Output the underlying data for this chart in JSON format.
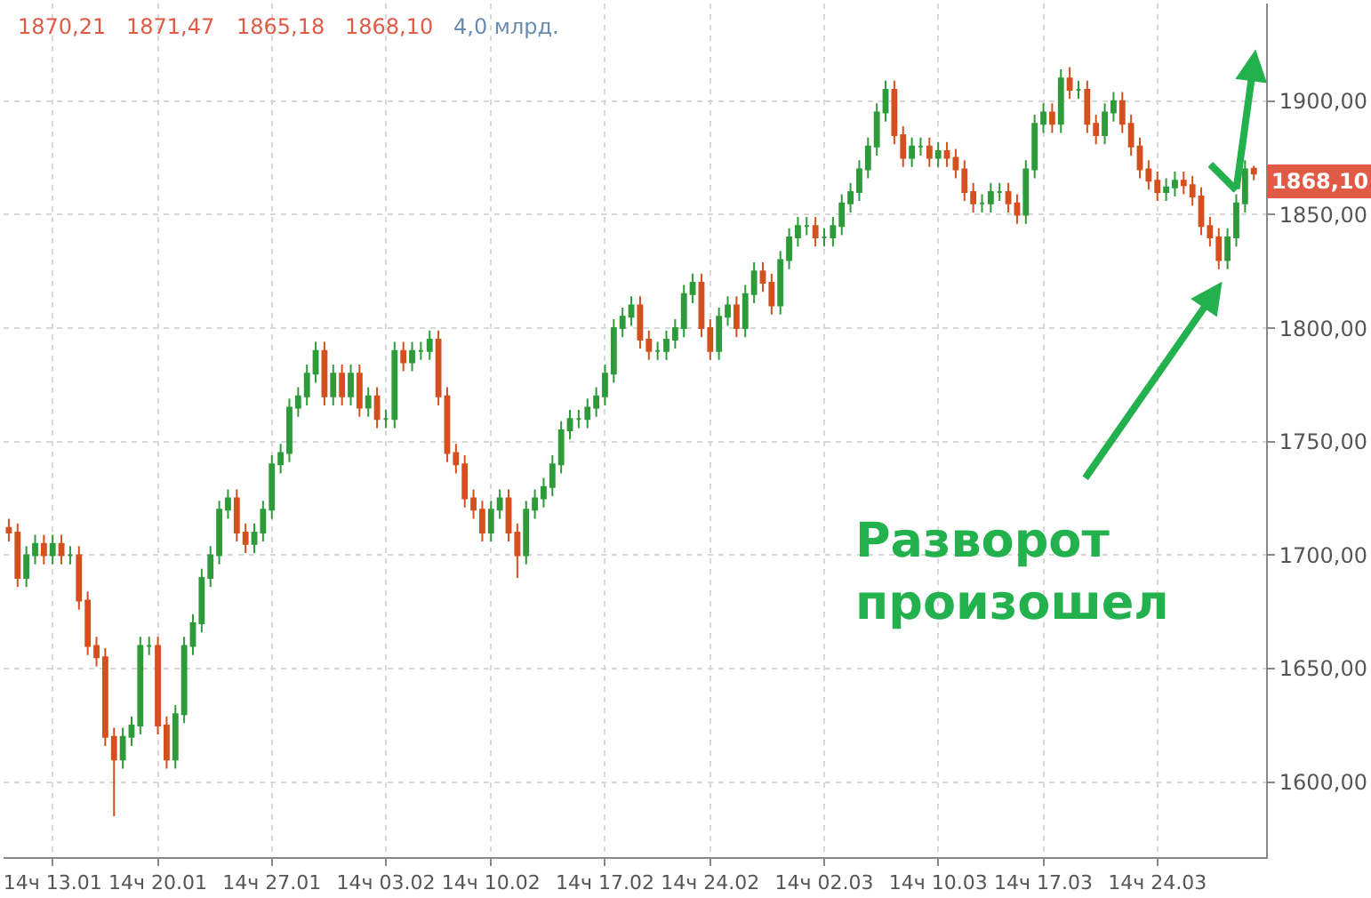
{
  "chart_data": {
    "type": "candlestick",
    "categories": [
      null,
      null,
      null,
      null,
      null,
      "14ч 13.01",
      null,
      null,
      null,
      null,
      null,
      null,
      null,
      null,
      null,
      null,
      null,
      "14ч 20.01",
      null,
      null,
      null,
      null,
      null,
      null,
      null,
      null,
      null,
      null,
      null,
      null,
      "14ч 27.01",
      null,
      null,
      null,
      null,
      null,
      null,
      null,
      null,
      null,
      null,
      null,
      null,
      "14ч 03.02",
      null,
      null,
      null,
      null,
      null,
      null,
      null,
      null,
      null,
      null,
      null,
      "14ч 10.02",
      null,
      null,
      null,
      null,
      null,
      null,
      null,
      null,
      null,
      null,
      null,
      null,
      "14ч 17.02",
      null,
      null,
      null,
      null,
      null,
      null,
      null,
      null,
      null,
      null,
      null,
      "14ч 24.02",
      null,
      null,
      null,
      null,
      null,
      null,
      null,
      null,
      null,
      null,
      null,
      null,
      "14ч 02.03",
      null,
      null,
      null,
      null,
      null,
      null,
      null,
      null,
      null,
      null,
      null,
      null,
      "14ч 10.03",
      null,
      null,
      null,
      null,
      null,
      null,
      null,
      null,
      null,
      null,
      null,
      "14ч 17.03",
      null,
      null,
      null,
      null,
      null,
      null,
      null,
      null,
      null,
      null,
      null,
      null,
      "14ч 24.03",
      null,
      null,
      null,
      null,
      null,
      null,
      null,
      null,
      null,
      null,
      null
    ],
    "ohlc": [
      [
        1712,
        1716,
        1706,
        1710
      ],
      [
        1710,
        1714,
        1686,
        1690
      ],
      [
        1690,
        1704,
        1686,
        1700
      ],
      [
        1700,
        1709,
        1696,
        1705
      ],
      [
        1705,
        1709,
        1696,
        1700
      ],
      [
        1700,
        1709,
        1696,
        1705
      ],
      [
        1705,
        1709,
        1696,
        1700
      ],
      [
        1700,
        1704,
        1696,
        1700
      ],
      [
        1700,
        1704,
        1676,
        1680
      ],
      [
        1680,
        1684,
        1656,
        1660
      ],
      [
        1660,
        1664,
        1651,
        1655
      ],
      [
        1655,
        1659,
        1616,
        1620
      ],
      [
        1620,
        1624,
        1585,
        1610
      ],
      [
        1610,
        1624,
        1606,
        1620
      ],
      [
        1620,
        1629,
        1616,
        1625
      ],
      [
        1625,
        1664,
        1621,
        1660
      ],
      [
        1660,
        1664,
        1656,
        1660
      ],
      [
        1660,
        1664,
        1621,
        1625
      ],
      [
        1625,
        1629,
        1606,
        1610
      ],
      [
        1610,
        1634,
        1606,
        1630
      ],
      [
        1630,
        1664,
        1626,
        1660
      ],
      [
        1660,
        1674,
        1656,
        1670
      ],
      [
        1670,
        1694,
        1666,
        1690
      ],
      [
        1690,
        1704,
        1686,
        1700
      ],
      [
        1700,
        1724,
        1696,
        1720
      ],
      [
        1720,
        1729,
        1716,
        1725
      ],
      [
        1725,
        1729,
        1706,
        1710
      ],
      [
        1710,
        1714,
        1701,
        1705
      ],
      [
        1705,
        1714,
        1701,
        1710
      ],
      [
        1710,
        1724,
        1706,
        1720
      ],
      [
        1720,
        1744,
        1716,
        1740
      ],
      [
        1740,
        1749,
        1736,
        1745
      ],
      [
        1745,
        1769,
        1741,
        1765
      ],
      [
        1765,
        1774,
        1761,
        1770
      ],
      [
        1770,
        1784,
        1766,
        1780
      ],
      [
        1780,
        1794,
        1776,
        1790
      ],
      [
        1790,
        1794,
        1766,
        1770
      ],
      [
        1770,
        1784,
        1766,
        1780
      ],
      [
        1780,
        1784,
        1766,
        1770
      ],
      [
        1770,
        1784,
        1766,
        1780
      ],
      [
        1780,
        1784,
        1761,
        1765
      ],
      [
        1765,
        1774,
        1761,
        1770
      ],
      [
        1770,
        1774,
        1756,
        1760
      ],
      [
        1760,
        1764,
        1756,
        1760
      ],
      [
        1760,
        1794,
        1756,
        1790
      ],
      [
        1790,
        1794,
        1781,
        1785
      ],
      [
        1785,
        1794,
        1781,
        1790
      ],
      [
        1790,
        1794,
        1786,
        1790
      ],
      [
        1790,
        1799,
        1786,
        1795
      ],
      [
        1795,
        1799,
        1766,
        1770
      ],
      [
        1770,
        1774,
        1741,
        1745
      ],
      [
        1745,
        1749,
        1736,
        1740
      ],
      [
        1740,
        1744,
        1721,
        1725
      ],
      [
        1725,
        1729,
        1716,
        1720
      ],
      [
        1720,
        1724,
        1706,
        1710
      ],
      [
        1710,
        1724,
        1706,
        1720
      ],
      [
        1720,
        1729,
        1716,
        1725
      ],
      [
        1725,
        1729,
        1706,
        1710
      ],
      [
        1710,
        1714,
        1690,
        1700
      ],
      [
        1700,
        1724,
        1696,
        1720
      ],
      [
        1720,
        1729,
        1716,
        1725
      ],
      [
        1725,
        1734,
        1721,
        1730
      ],
      [
        1730,
        1744,
        1726,
        1740
      ],
      [
        1740,
        1759,
        1736,
        1755
      ],
      [
        1755,
        1764,
        1751,
        1760
      ],
      [
        1760,
        1764,
        1756,
        1760
      ],
      [
        1760,
        1769,
        1756,
        1765
      ],
      [
        1765,
        1774,
        1761,
        1770
      ],
      [
        1770,
        1784,
        1766,
        1780
      ],
      [
        1780,
        1804,
        1776,
        1800
      ],
      [
        1800,
        1809,
        1796,
        1805
      ],
      [
        1805,
        1814,
        1801,
        1810
      ],
      [
        1810,
        1814,
        1791,
        1795
      ],
      [
        1795,
        1799,
        1786,
        1790
      ],
      [
        1790,
        1794,
        1786,
        1790
      ],
      [
        1790,
        1799,
        1786,
        1795
      ],
      [
        1795,
        1804,
        1791,
        1800
      ],
      [
        1800,
        1819,
        1796,
        1815
      ],
      [
        1815,
        1824,
        1811,
        1820
      ],
      [
        1820,
        1824,
        1796,
        1800
      ],
      [
        1800,
        1804,
        1786,
        1790
      ],
      [
        1790,
        1809,
        1786,
        1805
      ],
      [
        1805,
        1814,
        1801,
        1810
      ],
      [
        1810,
        1814,
        1796,
        1800
      ],
      [
        1800,
        1819,
        1796,
        1815
      ],
      [
        1815,
        1829,
        1811,
        1825
      ],
      [
        1825,
        1829,
        1816,
        1820
      ],
      [
        1820,
        1824,
        1806,
        1810
      ],
      [
        1810,
        1834,
        1806,
        1830
      ],
      [
        1830,
        1844,
        1826,
        1840
      ],
      [
        1840,
        1849,
        1836,
        1845
      ],
      [
        1845,
        1849,
        1841,
        1845
      ],
      [
        1845,
        1849,
        1836,
        1840
      ],
      [
        1840,
        1844,
        1836,
        1840
      ],
      [
        1840,
        1849,
        1836,
        1845
      ],
      [
        1845,
        1859,
        1841,
        1855
      ],
      [
        1855,
        1864,
        1851,
        1860
      ],
      [
        1860,
        1874,
        1856,
        1870
      ],
      [
        1870,
        1884,
        1866,
        1880
      ],
      [
        1880,
        1899,
        1876,
        1895
      ],
      [
        1895,
        1909,
        1891,
        1905
      ],
      [
        1905,
        1909,
        1881,
        1885
      ],
      [
        1885,
        1889,
        1871,
        1875
      ],
      [
        1875,
        1884,
        1871,
        1880
      ],
      [
        1880,
        1884,
        1876,
        1880
      ],
      [
        1880,
        1884,
        1871,
        1875
      ],
      [
        1875,
        1882,
        1871,
        1878
      ],
      [
        1878,
        1882,
        1871,
        1875
      ],
      [
        1875,
        1879,
        1866,
        1870
      ],
      [
        1870,
        1874,
        1856,
        1860
      ],
      [
        1860,
        1864,
        1851,
        1855
      ],
      [
        1855,
        1859,
        1851,
        1855
      ],
      [
        1855,
        1864,
        1851,
        1860
      ],
      [
        1860,
        1864,
        1856,
        1860
      ],
      [
        1860,
        1864,
        1851,
        1855
      ],
      [
        1855,
        1859,
        1846,
        1850
      ],
      [
        1850,
        1874,
        1846,
        1870
      ],
      [
        1870,
        1894,
        1866,
        1890
      ],
      [
        1890,
        1899,
        1886,
        1895
      ],
      [
        1895,
        1899,
        1886,
        1890
      ],
      [
        1890,
        1914,
        1886,
        1910
      ],
      [
        1910,
        1915,
        1901,
        1905
      ],
      [
        1905,
        1909,
        1901,
        1905
      ],
      [
        1905,
        1909,
        1886,
        1890
      ],
      [
        1890,
        1894,
        1881,
        1885
      ],
      [
        1885,
        1899,
        1881,
        1895
      ],
      [
        1895,
        1904,
        1891,
        1900
      ],
      [
        1900,
        1904,
        1886,
        1890
      ],
      [
        1890,
        1894,
        1876,
        1880
      ],
      [
        1880,
        1884,
        1866,
        1870
      ],
      [
        1870,
        1874,
        1861,
        1865
      ],
      [
        1865,
        1869,
        1856,
        1860
      ],
      [
        1860,
        1866,
        1856,
        1862
      ],
      [
        1862,
        1869,
        1858,
        1865
      ],
      [
        1865,
        1869,
        1859,
        1863
      ],
      [
        1863,
        1867,
        1854,
        1858
      ],
      [
        1858,
        1862,
        1841,
        1845
      ],
      [
        1845,
        1849,
        1836,
        1840
      ],
      [
        1840,
        1844,
        1826,
        1830
      ],
      [
        1830,
        1844,
        1826,
        1840
      ],
      [
        1840,
        1859,
        1836,
        1855
      ],
      [
        1855,
        1874,
        1851,
        1870
      ],
      [
        1870.21,
        1871.47,
        1865.18,
        1868.1
      ]
    ],
    "colors": [
      "#d4501f",
      "#d4501f",
      "#2e9b3a",
      "#2e9b3a",
      "#d4501f",
      "#2e9b3a",
      "#d4501f",
      "#2e9b3a",
      "#d4501f",
      "#d4501f",
      "#d4501f",
      "#d4501f",
      "#d4501f",
      "#2e9b3a",
      "#2e9b3a",
      "#2e9b3a",
      "#2e9b3a",
      "#d4501f",
      "#d4501f",
      "#2e9b3a",
      "#2e9b3a",
      "#2e9b3a",
      "#2e9b3a",
      "#2e9b3a",
      "#2e9b3a",
      "#2e9b3a",
      "#d4501f",
      "#d4501f",
      "#2e9b3a",
      "#2e9b3a",
      "#2e9b3a",
      "#2e9b3a",
      "#2e9b3a",
      "#2e9b3a",
      "#2e9b3a",
      "#2e9b3a",
      "#d4501f",
      "#2e9b3a",
      "#d4501f",
      "#2e9b3a",
      "#d4501f",
      "#2e9b3a",
      "#d4501f",
      "#2e9b3a",
      "#2e9b3a",
      "#d4501f",
      "#2e9b3a",
      "#2e9b3a",
      "#2e9b3a",
      "#d4501f",
      "#d4501f",
      "#d4501f",
      "#d4501f",
      "#d4501f",
      "#d4501f",
      "#2e9b3a",
      "#2e9b3a",
      "#d4501f",
      "#d4501f",
      "#2e9b3a",
      "#2e9b3a",
      "#2e9b3a",
      "#2e9b3a",
      "#2e9b3a",
      "#2e9b3a",
      "#2e9b3a",
      "#2e9b3a",
      "#2e9b3a",
      "#2e9b3a",
      "#2e9b3a",
      "#2e9b3a",
      "#2e9b3a",
      "#d4501f",
      "#d4501f",
      "#2e9b3a",
      "#2e9b3a",
      "#2e9b3a",
      "#2e9b3a",
      "#2e9b3a",
      "#d4501f",
      "#d4501f",
      "#2e9b3a",
      "#2e9b3a",
      "#d4501f",
      "#2e9b3a",
      "#2e9b3a",
      "#d4501f",
      "#d4501f",
      "#2e9b3a",
      "#2e9b3a",
      "#2e9b3a",
      "#2e9b3a",
      "#d4501f",
      "#2e9b3a",
      "#2e9b3a",
      "#2e9b3a",
      "#2e9b3a",
      "#2e9b3a",
      "#2e9b3a",
      "#2e9b3a",
      "#2e9b3a",
      "#d4501f",
      "#d4501f",
      "#2e9b3a",
      "#2e9b3a",
      "#d4501f",
      "#2e9b3a",
      "#d4501f",
      "#d4501f",
      "#d4501f",
      "#d4501f",
      "#2e9b3a",
      "#2e9b3a",
      "#2e9b3a",
      "#d4501f",
      "#d4501f",
      "#2e9b3a",
      "#2e9b3a",
      "#2e9b3a",
      "#d4501f",
      "#2e9b3a",
      "#d4501f",
      "#2e9b3a",
      "#d4501f",
      "#d4501f",
      "#2e9b3a",
      "#2e9b3a",
      "#d4501f",
      "#d4501f",
      "#d4501f",
      "#d4501f",
      "#d4501f",
      "#2e9b3a",
      "#2e9b3a",
      "#d4501f",
      "#d4501f",
      "#d4501f",
      "#d4501f",
      "#d4501f",
      "#2e9b3a",
      "#2e9b3a",
      "#2e9b3a",
      "#d4501f"
    ],
    "ylim": [
      1567,
      1943
    ],
    "yticks": [
      {
        "value": 1600,
        "label": "1600,00"
      },
      {
        "value": 1650,
        "label": "1650,00"
      },
      {
        "value": 1700,
        "label": "1700,00"
      },
      {
        "value": 1750,
        "label": "1750,00"
      },
      {
        "value": 1800,
        "label": "1800,00"
      },
      {
        "value": 1850,
        "label": "1850,00"
      },
      {
        "value": 1900,
        "label": "1900,00"
      }
    ],
    "grid": true,
    "legend": false,
    "annotations": [
      "1870,21",
      "1871,47",
      "1865,18",
      "1868,10",
      "4,0 млрд.",
      "1868,10",
      "Разворот\nпроизошел"
    ]
  }
}
